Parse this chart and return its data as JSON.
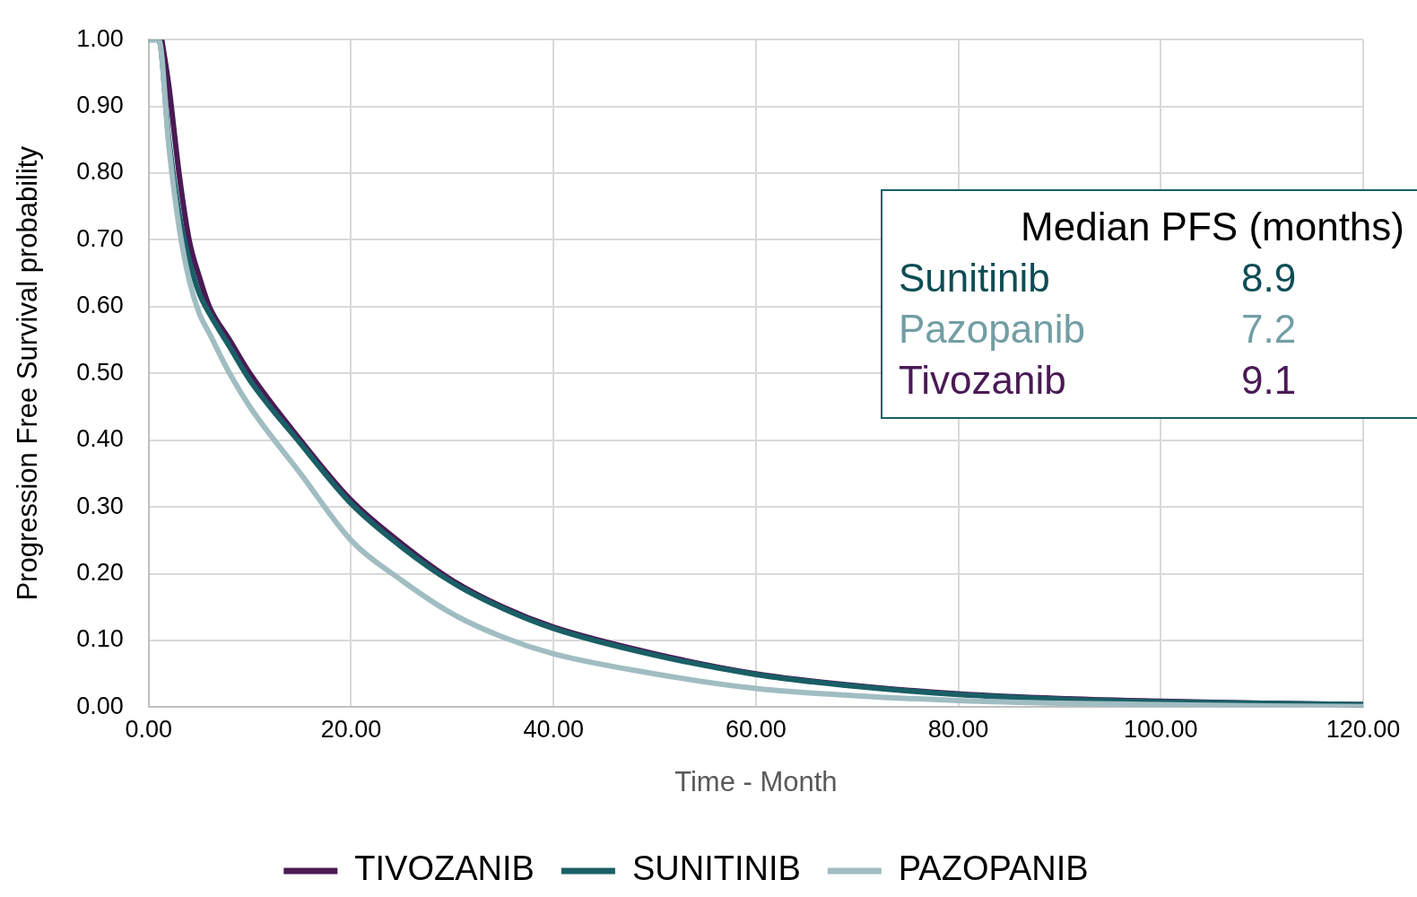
{
  "chart_data": {
    "type": "line",
    "xlabel": "Time - Month",
    "ylabel": "Progression Free Survival probability",
    "xlim": [
      0,
      120
    ],
    "xticks": [
      {
        "value": 0,
        "label": "0.00"
      },
      {
        "value": 20,
        "label": "20.00"
      },
      {
        "value": 40,
        "label": "40.00"
      },
      {
        "value": 60,
        "label": "60.00"
      },
      {
        "value": 80,
        "label": "80.00"
      },
      {
        "value": 100,
        "label": "100.00"
      },
      {
        "value": 120,
        "label": "120.00"
      }
    ],
    "ylim": [
      0,
      1
    ],
    "yticks": [
      {
        "value": 0,
        "label": "0.00"
      },
      {
        "value": 0.1,
        "label": "0.10"
      },
      {
        "value": 0.2,
        "label": "0.20"
      },
      {
        "value": 0.3,
        "label": "0.30"
      },
      {
        "value": 0.4,
        "label": "0.40"
      },
      {
        "value": 0.5,
        "label": "0.50"
      },
      {
        "value": 0.6,
        "label": "0.60"
      },
      {
        "value": 0.7,
        "label": "0.70"
      },
      {
        "value": 0.8,
        "label": "0.80"
      },
      {
        "value": 0.9,
        "label": "0.90"
      },
      {
        "value": 1,
        "label": "1.00"
      }
    ],
    "grid": true,
    "legend": "bottom",
    "marker": "none",
    "line_style": "solid",
    "series": [
      {
        "name": "TIVOZANIB",
        "color": "#4a1a55",
        "x": [
          1.3,
          2,
          3,
          4,
          5,
          6,
          8,
          10,
          15,
          20,
          25,
          30,
          35,
          40,
          50,
          60,
          70,
          80,
          90,
          100,
          110,
          120
        ],
        "values": [
          1,
          0.93,
          0.8,
          0.7,
          0.645,
          0.6,
          0.55,
          0.5,
          0.4,
          0.31,
          0.245,
          0.19,
          0.15,
          0.12,
          0.08,
          0.05,
          0.032,
          0.02,
          0.013,
          0.009,
          0.006,
          0.004
        ]
      },
      {
        "name": "SUNITINIB",
        "color": "#1a5f66",
        "x": [
          0,
          1,
          2,
          3,
          4,
          5,
          6,
          8,
          10,
          15,
          20,
          25,
          30,
          35,
          40,
          50,
          60,
          70,
          80,
          90,
          100,
          110,
          120
        ],
        "values": [
          1,
          1,
          0.85,
          0.74,
          0.67,
          0.62,
          0.59,
          0.54,
          0.49,
          0.395,
          0.305,
          0.24,
          0.187,
          0.148,
          0.118,
          0.078,
          0.049,
          0.031,
          0.019,
          0.012,
          0.008,
          0.006,
          0.004
        ]
      },
      {
        "name": "PAZOPANIB",
        "color": "#a0bdc2",
        "x": [
          0,
          1,
          2,
          3,
          4,
          5,
          6,
          8,
          10,
          15,
          20,
          25,
          30,
          35,
          40,
          50,
          60,
          70,
          80,
          90,
          100,
          110,
          120
        ],
        "values": [
          1,
          1,
          0.84,
          0.72,
          0.64,
          0.59,
          0.56,
          0.5,
          0.45,
          0.35,
          0.25,
          0.19,
          0.14,
          0.105,
          0.08,
          0.05,
          0.028,
          0.017,
          0.01,
          0.006,
          0.004,
          0.002,
          0.001
        ]
      }
    ],
    "annotations": [
      "Median PFS (months)",
      "Sunitinib",
      "8.9",
      "Pazopanib",
      "7.2",
      "Tivozanib",
      "9.1"
    ]
  }
}
